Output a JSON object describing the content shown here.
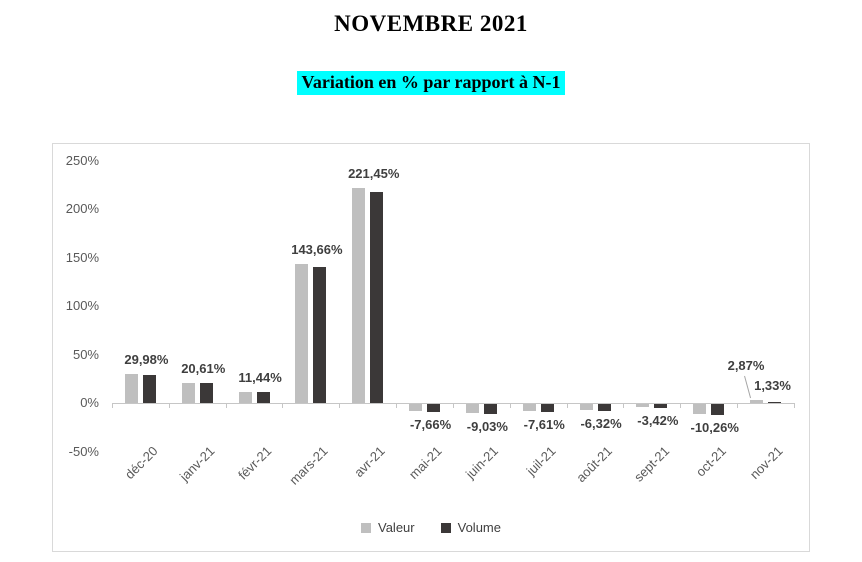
{
  "header": {
    "title": "NOVEMBRE 2021",
    "subtitle": "Variation en % par rapport à N-1",
    "subtitle_highlight_color": "#00ffff"
  },
  "chart_data": {
    "type": "bar",
    "title": "NOVEMBRE 2021",
    "subtitle": "Variation en % par rapport à N-1",
    "categories": [
      "déc-20",
      "janv-21",
      "févr-21",
      "mars-21",
      "avr-21",
      "mai-21",
      "juin-21",
      "juil-21",
      "août-21",
      "sept-21",
      "oct-21",
      "nov-21"
    ],
    "series": [
      {
        "name": "Valeur",
        "color": "#bfbfbf",
        "values": [
          29.98,
          20.61,
          11.44,
          143.66,
          221.45,
          -7.66,
          -9.03,
          -7.61,
          -6.32,
          -3.42,
          -10.26,
          2.87
        ]
      },
      {
        "name": "Volume",
        "color": "#3b3838",
        "values": [
          29.0,
          20.3,
          10.9,
          140.5,
          218.0,
          -8.3,
          -9.8,
          -8.2,
          -6.9,
          -4.4,
          -11.2,
          1.33
        ],
        "values_note": "only nov-21 labeled (1,33%); other values estimated from bar heights"
      }
    ],
    "point_labels": [
      {
        "text": "29,98%"
      },
      {
        "text": "20,61%"
      },
      {
        "text": "11,44%"
      },
      {
        "text": "143,66%"
      },
      {
        "text": "221,45%"
      },
      {
        "text": "-7,66%"
      },
      {
        "text": "-9,03%"
      },
      {
        "text": "-7,61%"
      },
      {
        "text": "-6,32%"
      },
      {
        "text": "-3,42%"
      },
      {
        "text": "-10,26%"
      },
      {
        "text": "2,87%",
        "text2": "1,33%",
        "callout": true
      }
    ],
    "y_axis": {
      "min": -50,
      "max": 250,
      "ticks": [
        {
          "label": "250%",
          "value": 250
        },
        {
          "label": "200%",
          "value": 200
        },
        {
          "label": "150%",
          "value": 150
        },
        {
          "label": "100%",
          "value": 100
        },
        {
          "label": "50%",
          "value": 50
        },
        {
          "label": "0%",
          "value": 0
        },
        {
          "label": "-50%",
          "value": -50
        }
      ]
    },
    "grid": false,
    "legend": {
      "position": "bottom",
      "items": [
        {
          "label": "Valeur",
          "color": "#bfbfbf"
        },
        {
          "label": "Volume",
          "color": "#3b3838"
        }
      ]
    },
    "colors": {
      "axis": "#c6c6c6",
      "axis_text": "#595959",
      "data_label_text": "#3f3f3f",
      "chart_border": "#d9d9d9"
    }
  }
}
